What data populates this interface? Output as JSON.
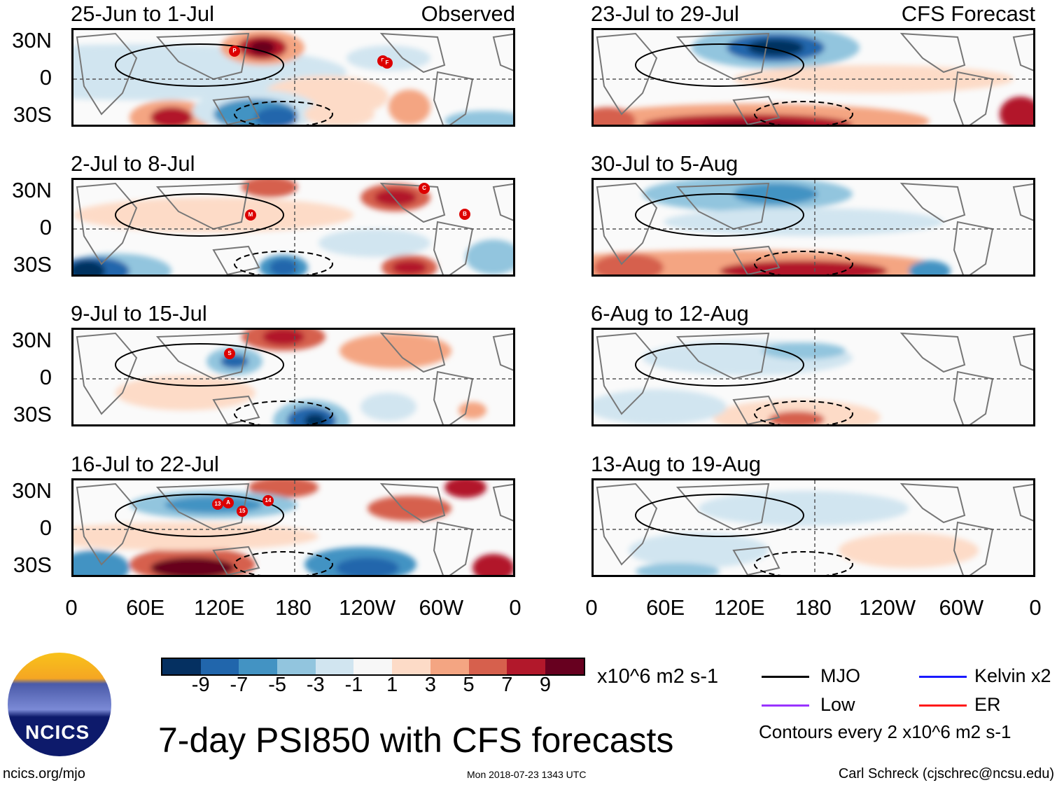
{
  "panels_left": [
    {
      "title": "25-Jun to 1-Jul",
      "tag": "Observed",
      "storms": [
        "P",
        "E",
        "F"
      ]
    },
    {
      "title": "2-Jul to 8-Jul",
      "storms": [
        "C",
        "M",
        "B"
      ]
    },
    {
      "title": "9-Jul to 15-Jul",
      "storms": [
        "S"
      ]
    },
    {
      "title": "16-Jul to 22-Jul",
      "storms": [
        "13",
        "A",
        "15",
        "14"
      ]
    }
  ],
  "panels_right": [
    {
      "title": "23-Jul to 29-Jul",
      "tag": "CFS Forecast"
    },
    {
      "title": "30-Jul to 5-Aug"
    },
    {
      "title": "6-Aug to 12-Aug"
    },
    {
      "title": "13-Aug to 19-Aug"
    }
  ],
  "lat_labels": [
    "30N",
    "0",
    "30S"
  ],
  "lon_labels": [
    "0",
    "60E",
    "120E",
    "180",
    "120W",
    "60W",
    "0"
  ],
  "colorbar": {
    "colors": [
      "#053061",
      "#2166ac",
      "#4393c3",
      "#92c5de",
      "#d1e5f0",
      "#f7f7f7",
      "#fddbc7",
      "#f4a582",
      "#d6604d",
      "#b2182b",
      "#67001f"
    ],
    "labels": [
      "-9",
      "-7",
      "-5",
      "-3",
      "-1",
      "1",
      "3",
      "5",
      "7",
      "9"
    ],
    "units": "x10^6 m2 s-1"
  },
  "legend": {
    "items": [
      {
        "label": "MJO",
        "color": "#000000"
      },
      {
        "label": "Kelvin x2",
        "color": "#1a1aff"
      },
      {
        "label": "Low",
        "color": "#9933ff"
      },
      {
        "label": "ER",
        "color": "#ff1a1a"
      }
    ],
    "contours_note": "Contours every 2 x10^6 m2 s-1"
  },
  "title": "7-day PSI850 with CFS forecasts",
  "logo_text": "NCICS",
  "footer": {
    "url": "ncics.org/mjo",
    "timestamp": "Mon 2018-07-23 1343 UTC",
    "author": "Carl Schreck (cjschrec@ncsu.edu)"
  }
}
